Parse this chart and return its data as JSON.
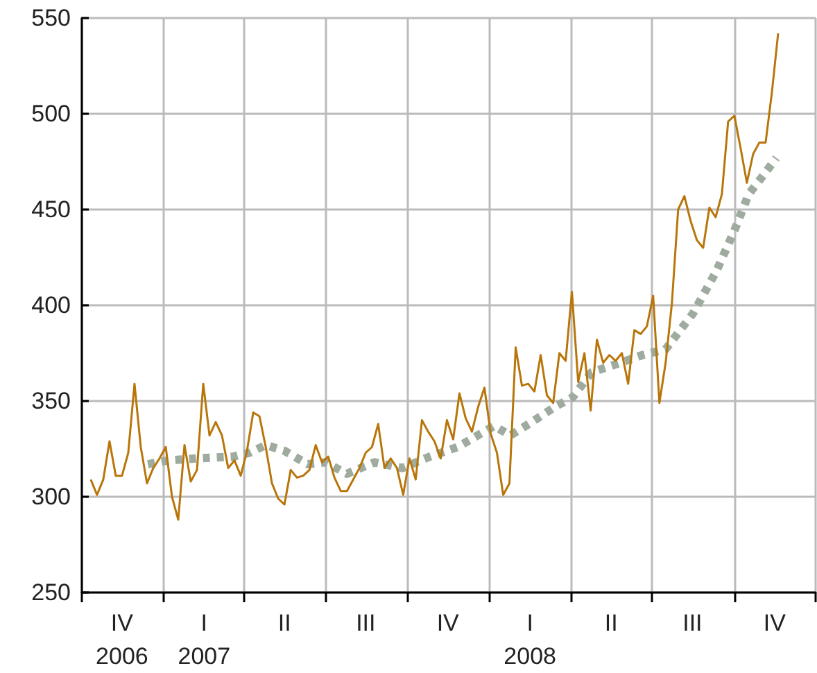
{
  "chart_data": {
    "type": "line",
    "xlim": [
      "2006-10-01",
      "2008-12-31"
    ],
    "xticks": [
      {
        "value": "2006-10-01",
        "label": null
      },
      {
        "value": "2006-11-15",
        "label": "IV\n2006"
      },
      {
        "value": "2007-01-01",
        "label": null
      },
      {
        "value": "2007-02-15",
        "label": "I\n2007"
      },
      {
        "value": "2007-04-01",
        "label": null
      },
      {
        "value": "2007-05-16",
        "label": "II"
      },
      {
        "value": "2007-07-01",
        "label": null
      },
      {
        "value": "2007-08-15",
        "label": "III"
      },
      {
        "value": "2007-10-01",
        "label": null
      },
      {
        "value": "2007-11-15",
        "label": "IV"
      },
      {
        "value": "2008-01-01",
        "label": null
      },
      {
        "value": "2008-02-15",
        "label": "I\n2008"
      },
      {
        "value": "2008-04-01",
        "label": null
      },
      {
        "value": "2008-05-16",
        "label": "II"
      },
      {
        "value": "2008-07-01",
        "label": null
      },
      {
        "value": "2008-08-15",
        "label": "III"
      },
      {
        "value": "2008-10-01",
        "label": null
      },
      {
        "value": "2008-11-15",
        "label": "IV"
      },
      {
        "value": "2008-12-31",
        "label": null
      }
    ],
    "ylim": [
      250,
      550
    ],
    "yticks": [
      250,
      300,
      350,
      400,
      450,
      500,
      550
    ],
    "grid": true,
    "marker": "none",
    "series": [
      {
        "color": "#b8760a",
        "line_style": "solid",
        "x": [
          "2006-10-11",
          "2006-10-18",
          "2006-10-25",
          "2006-11-01",
          "2006-11-08",
          "2006-11-15",
          "2006-11-22",
          "2006-11-29",
          "2006-12-06",
          "2006-12-13",
          "2006-12-20",
          "2006-12-27",
          "2007-01-03",
          "2007-01-10",
          "2007-01-17",
          "2007-01-24",
          "2007-01-31",
          "2007-02-07",
          "2007-02-14",
          "2007-02-21",
          "2007-02-28",
          "2007-03-07",
          "2007-03-14",
          "2007-03-21",
          "2007-03-28",
          "2007-04-04",
          "2007-04-11",
          "2007-04-18",
          "2007-04-25",
          "2007-05-02",
          "2007-05-09",
          "2007-05-16",
          "2007-05-23",
          "2007-05-30",
          "2007-06-06",
          "2007-06-13",
          "2007-06-20",
          "2007-06-27",
          "2007-07-04",
          "2007-07-11",
          "2007-07-18",
          "2007-07-25",
          "2007-08-01",
          "2007-08-08",
          "2007-08-15",
          "2007-08-22",
          "2007-08-29",
          "2007-09-05",
          "2007-09-12",
          "2007-09-19",
          "2007-09-26",
          "2007-10-03",
          "2007-10-10",
          "2007-10-17",
          "2007-10-24",
          "2007-10-31",
          "2007-11-07",
          "2007-11-14",
          "2007-11-21",
          "2007-11-28",
          "2007-12-05",
          "2007-12-12",
          "2007-12-19",
          "2007-12-26",
          "2008-01-02",
          "2008-01-09",
          "2008-01-16",
          "2008-01-23",
          "2008-01-30",
          "2008-02-06",
          "2008-02-13",
          "2008-02-20",
          "2008-02-27",
          "2008-03-05",
          "2008-03-12",
          "2008-03-19",
          "2008-03-26",
          "2008-04-02",
          "2008-04-09",
          "2008-04-16",
          "2008-04-23",
          "2008-04-30",
          "2008-05-07",
          "2008-05-14",
          "2008-05-21",
          "2008-05-28",
          "2008-06-04",
          "2008-06-11",
          "2008-06-18",
          "2008-06-25",
          "2008-07-02",
          "2008-07-09",
          "2008-07-16",
          "2008-07-23",
          "2008-07-30",
          "2008-08-06",
          "2008-08-13",
          "2008-08-20",
          "2008-08-27",
          "2008-09-03",
          "2008-09-10",
          "2008-09-17",
          "2008-09-24",
          "2008-10-01",
          "2008-10-08",
          "2008-10-15",
          "2008-10-22",
          "2008-10-29",
          "2008-11-05",
          "2008-11-12",
          "2008-11-19"
        ],
        "values": [
          309,
          301,
          309,
          329,
          311,
          311,
          323,
          359,
          326,
          307,
          315,
          320,
          326,
          300,
          288,
          327,
          308,
          314,
          359,
          332,
          339,
          332,
          315,
          319,
          311,
          324,
          344,
          342,
          326,
          307,
          299,
          296,
          314,
          310,
          311,
          314,
          327,
          318,
          321,
          310,
          303,
          303,
          309,
          315,
          323,
          326,
          338,
          315,
          320,
          315,
          301,
          320,
          309,
          340,
          334,
          329,
          320,
          340,
          330,
          354,
          341,
          334,
          347,
          357,
          333,
          323,
          301,
          307,
          378,
          358,
          359,
          355,
          374,
          353,
          349,
          375,
          371,
          407,
          360,
          375,
          345,
          382,
          370,
          374,
          371,
          375,
          359,
          387,
          385,
          389,
          405,
          349,
          370,
          401,
          450,
          457,
          444,
          434,
          430,
          451,
          446,
          458,
          496,
          499,
          482,
          464,
          479,
          485,
          485,
          511,
          542
        ]
      },
      {
        "color": "#9eab9e",
        "line_style": "dotted",
        "x": [
          "2006-12-14",
          "2007-01-06",
          "2007-02-06",
          "2007-03-20",
          "2007-04-07",
          "2007-04-25",
          "2007-05-16",
          "2007-06-11",
          "2007-07-01",
          "2007-07-25",
          "2007-08-25",
          "2007-09-25",
          "2007-10-26",
          "2007-11-26",
          "2007-12-22",
          "2008-01-06",
          "2008-01-24",
          "2008-02-17",
          "2008-03-14",
          "2008-04-03",
          "2008-04-24",
          "2008-05-20",
          "2008-06-20",
          "2008-07-16",
          "2008-08-16",
          "2008-09-11",
          "2008-10-01",
          "2008-10-17",
          "2008-11-01",
          "2008-11-17"
        ],
        "values": [
          317,
          319,
          320,
          321,
          323,
          327,
          324,
          317,
          318,
          312,
          318,
          315,
          321,
          326,
          333,
          337,
          332,
          339,
          347,
          352,
          365,
          369,
          374,
          377,
          396,
          418,
          439,
          458,
          467,
          477
        ]
      }
    ]
  }
}
